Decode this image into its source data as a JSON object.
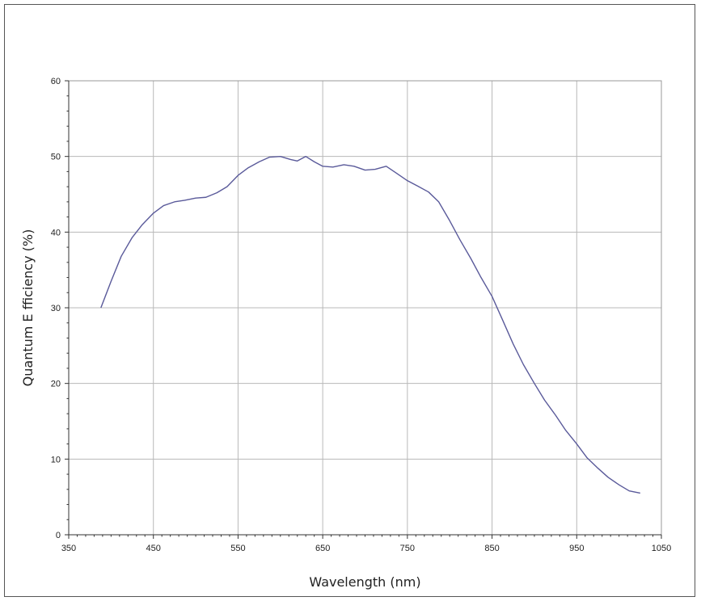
{
  "chart_data": {
    "type": "line",
    "title": "",
    "xlabel": "Wavelength (nm)",
    "ylabel": "Quantum E fficiency (%)",
    "xlim": [
      350,
      1050
    ],
    "ylim": [
      0,
      60
    ],
    "x_ticks": [
      350,
      450,
      550,
      650,
      750,
      850,
      950,
      1050
    ],
    "y_ticks": [
      0,
      10,
      20,
      30,
      40,
      50,
      60
    ],
    "grid": true,
    "legend": "none",
    "line_color": "#5a5a9a",
    "series": [
      {
        "x": [
          388,
          400,
          412,
          425,
          437,
          450,
          462,
          475,
          487,
          500,
          512,
          525,
          537,
          550,
          562,
          575,
          587,
          600,
          612,
          620,
          630,
          640,
          650,
          662,
          675,
          687,
          700,
          712,
          725,
          737,
          750,
          762,
          775,
          787,
          800,
          812,
          825,
          837,
          850,
          862,
          875,
          887,
          900,
          912,
          925,
          937,
          950,
          962,
          975,
          987,
          1000,
          1012,
          1025
        ],
        "y": [
          30,
          33.5,
          36.8,
          39.3,
          41.0,
          42.5,
          43.5,
          44.0,
          44.2,
          44.5,
          44.6,
          45.2,
          46.0,
          47.5,
          48.5,
          49.3,
          49.9,
          50.0,
          49.6,
          49.4,
          50.0,
          49.3,
          48.7,
          48.6,
          48.9,
          48.7,
          48.2,
          48.3,
          48.7,
          47.8,
          46.8,
          46.1,
          45.3,
          44.0,
          41.5,
          39.0,
          36.5,
          34.0,
          31.5,
          28.5,
          25.2,
          22.5,
          20.0,
          17.8,
          15.8,
          13.8,
          12.0,
          10.2,
          8.8,
          7.6,
          6.6,
          5.8,
          5.5
        ]
      }
    ]
  }
}
